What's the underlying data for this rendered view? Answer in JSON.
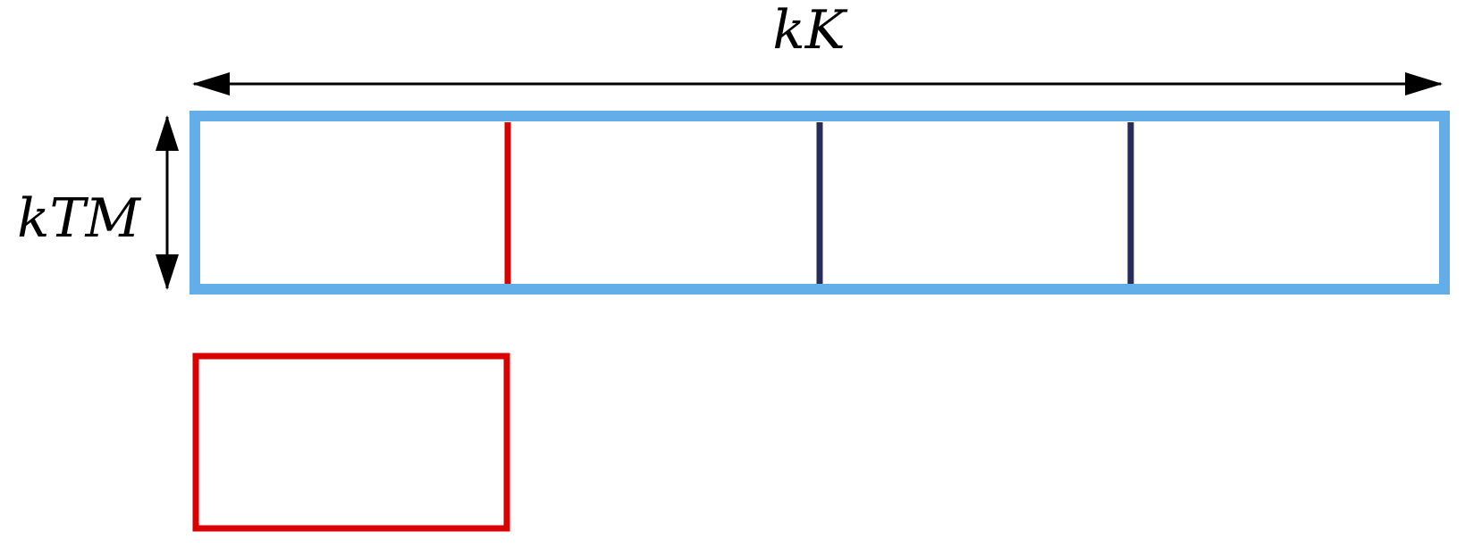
{
  "labels": {
    "width": "kK",
    "height": "kTM"
  },
  "colors": {
    "outer_border": "#63ade8",
    "highlight": "#d90000",
    "divider": "#272c58",
    "arrow": "#000000",
    "background": "#ffffff"
  },
  "grid": {
    "columns": 4,
    "highlighted_column": 1
  }
}
